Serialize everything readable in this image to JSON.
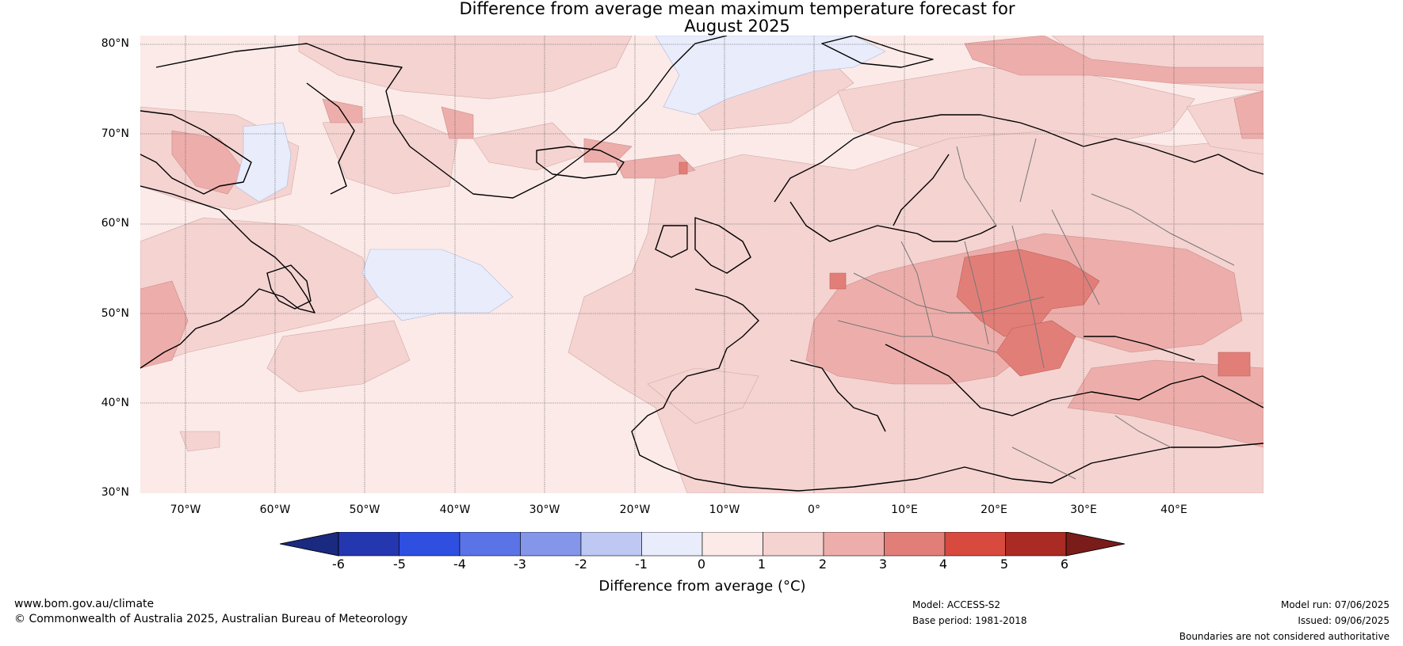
{
  "title": {
    "line1": "Difference from average mean maximum temperature forecast for",
    "line2": "August 2025"
  },
  "map": {
    "lat_labels": [
      "80°N",
      "70°N",
      "60°N",
      "50°N",
      "40°N",
      "30°N"
    ],
    "lon_labels": [
      "70°W",
      "60°W",
      "50°W",
      "40°W",
      "30°W",
      "20°W",
      "10°W",
      "0°",
      "10°E",
      "20°E",
      "30°E",
      "40°E"
    ],
    "lat_range": [
      30,
      81
    ],
    "lon_range": [
      -75,
      50
    ],
    "graticule": true
  },
  "colorbar": {
    "ticks": [
      "-6",
      "-5",
      "-4",
      "-3",
      "-2",
      "-1",
      "0",
      "1",
      "2",
      "3",
      "4",
      "5",
      "6"
    ],
    "label": "Difference from average (°C)",
    "colors": [
      "#1a2a80",
      "#2436b0",
      "#2e4fe0",
      "#5a73e6",
      "#8396ea",
      "#bec8f3",
      "#e8ecfb",
      "#fbeae8",
      "#f4d3d1",
      "#edaeab",
      "#e27e78",
      "#d84a3e",
      "#aa2a24",
      "#7a1c1a"
    ]
  },
  "footer": {
    "website": "www.bom.gov.au/climate",
    "copyright": "© Commonwealth of Australia 2025, Australian Bureau of Meteorology",
    "model": "Model: ACCESS-S2",
    "base_period": "Base period: 1981-2018",
    "model_run": "Model run: 07/06/2025",
    "issued": "Issued: 09/06/2025",
    "disclaimer": "Boundaries are not considered authoritative"
  }
}
